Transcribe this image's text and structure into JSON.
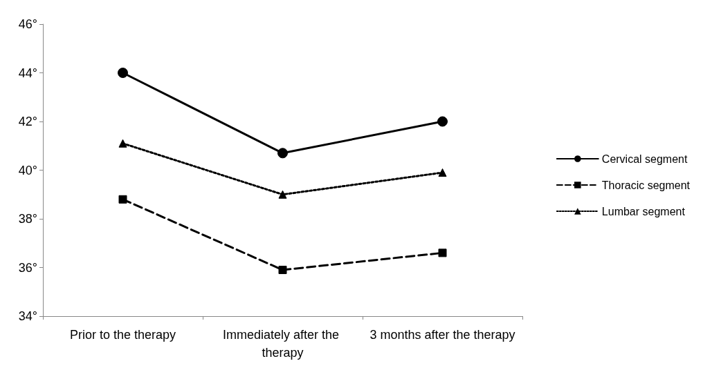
{
  "chart_data": {
    "type": "line",
    "categories": [
      "Prior to the therapy",
      "Immediately after the therapy",
      "3 months after the therapy"
    ],
    "series": [
      {
        "name": "Cervical segment",
        "color": "#000000",
        "marker": "circle",
        "line_style": "solid",
        "values": [
          44,
          40.7,
          42
        ]
      },
      {
        "name": "Thoracic segment",
        "color": "#000000",
        "marker": "square",
        "line_style": "dashed",
        "values": [
          38.8,
          35.9,
          36.6
        ]
      },
      {
        "name": "Lumbar segment",
        "color": "#000000",
        "marker": "triangle",
        "line_style": "dotted",
        "values": [
          41.1,
          39.0,
          39.9
        ]
      }
    ],
    "ylim": [
      34,
      46
    ],
    "yticks": [
      {
        "value": 34,
        "label": "34°"
      },
      {
        "value": 36,
        "label": "36°"
      },
      {
        "value": 38,
        "label": "38°"
      },
      {
        "value": 40,
        "label": "40°"
      },
      {
        "value": 42,
        "label": "42°"
      },
      {
        "value": 44,
        "label": "44°"
      },
      {
        "value": 46,
        "label": "46°"
      }
    ],
    "grid": false,
    "legend": "right"
  }
}
